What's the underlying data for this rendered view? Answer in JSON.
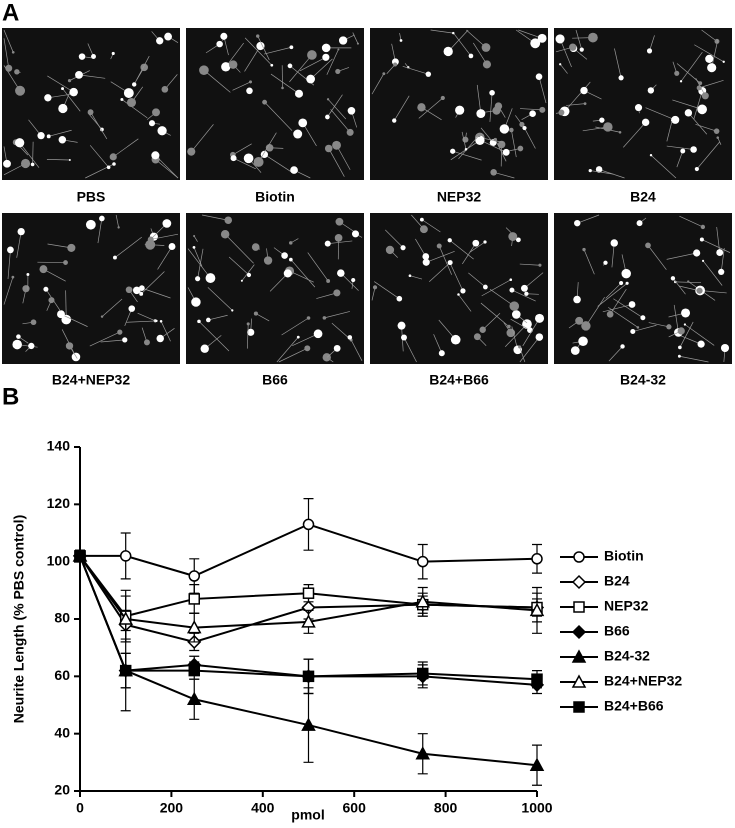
{
  "panel_labels": [
    "A",
    "B"
  ],
  "images": [
    {
      "label": "PBS"
    },
    {
      "label": "Biotin"
    },
    {
      "label": "NEP32"
    },
    {
      "label": "B24"
    },
    {
      "label": "B24+NEP32"
    },
    {
      "label": "B66"
    },
    {
      "label": "B24+B66"
    },
    {
      "label": "B24-32"
    }
  ],
  "chart_data": {
    "type": "line",
    "xlabel": "pmol",
    "ylabel": "Neurite Length (% PBS control)",
    "x": [
      0,
      100,
      250,
      500,
      750,
      1000
    ],
    "xlim": [
      0,
      1000
    ],
    "xticks": [
      0,
      200,
      400,
      600,
      800,
      1000
    ],
    "ylim": [
      20,
      140
    ],
    "yticks": [
      20,
      40,
      60,
      80,
      100,
      120,
      140
    ],
    "series": [
      {
        "name": "Biotin",
        "color": "#000000",
        "marker": "circle-open",
        "values": [
          102,
          102,
          95,
          113,
          100,
          101
        ],
        "errors": [
          2,
          8,
          6,
          9,
          6,
          5
        ]
      },
      {
        "name": "B24",
        "color": "#000000",
        "marker": "diamond-open",
        "values": [
          102,
          78,
          72,
          84,
          85,
          84
        ],
        "errors": [
          2,
          5,
          3,
          4,
          3,
          5
        ]
      },
      {
        "name": "NEP32",
        "color": "#000000",
        "marker": "square-open",
        "values": [
          102,
          81,
          87,
          89,
          85,
          84
        ],
        "errors": [
          2,
          9,
          5,
          3,
          4,
          3
        ]
      },
      {
        "name": "B66",
        "color": "#000000",
        "marker": "diamond-filled",
        "values": [
          102,
          62,
          64,
          60,
          60,
          57
        ],
        "errors": [
          2,
          6,
          3,
          6,
          4,
          3
        ]
      },
      {
        "name": "B24-32",
        "color": "#000000",
        "marker": "triangle-filled",
        "values": [
          102,
          62,
          52,
          43,
          33,
          29
        ],
        "errors": [
          2,
          14,
          7,
          13,
          7,
          7
        ]
      },
      {
        "name": "B24+NEP32",
        "color": "#000000",
        "marker": "triangle-open",
        "values": [
          102,
          80,
          77,
          79,
          86,
          83
        ],
        "errors": [
          2,
          8,
          5,
          4,
          5,
          8
        ]
      },
      {
        "name": "B24+B66",
        "color": "#000000",
        "marker": "square-filled",
        "values": [
          102,
          62,
          62,
          60,
          61,
          59
        ],
        "errors": [
          2,
          6,
          3,
          6,
          4,
          3
        ]
      }
    ]
  }
}
